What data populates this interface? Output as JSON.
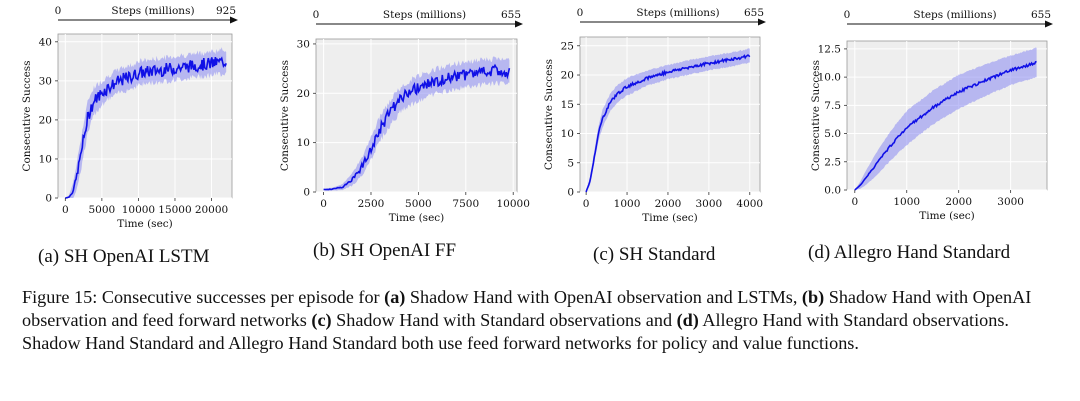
{
  "charts": [
    {
      "sub_caption": "(a) SH OpenAI LSTM",
      "top_axis": {
        "label": "Steps (millions)",
        "start": "0",
        "end": "925"
      },
      "chart_data": {
        "type": "line",
        "title": "",
        "xlabel": "Time (sec)",
        "ylabel": "Consecutive Success",
        "xlim": [
          -1000,
          22800
        ],
        "ylim": [
          0,
          42
        ],
        "xticks": [
          0,
          5000,
          10000,
          15000,
          20000
        ],
        "yticks": [
          0,
          10,
          20,
          30,
          40
        ],
        "grid": true,
        "series": [
          {
            "x": [
              0,
              500,
              1000,
              1500,
              2000,
              2500,
              3000,
              3500,
              4000,
              5000,
              6000,
              7000,
              8000,
              9000,
              10000,
              12000,
              14000,
              16000,
              18000,
              20000,
              22000
            ],
            "values": [
              0,
              0.2,
              1.5,
              5,
              10,
              15,
              20,
              23,
              25,
              27,
              28.5,
              29.5,
              30.5,
              31,
              32,
              32.5,
              33,
              33.5,
              34,
              34.5,
              35
            ],
            "band": [
              0,
              0.5,
              2,
              3,
              4,
              4,
              4,
              4,
              3.5,
              3,
              3,
              3,
              3,
              3,
              3,
              3,
              3,
              3,
              3,
              3,
              3
            ]
          }
        ]
      }
    },
    {
      "sub_caption": "(b) SH OpenAI FF",
      "top_axis": {
        "label": "Steps (millions)",
        "start": "0",
        "end": "655"
      },
      "chart_data": {
        "type": "line",
        "title": "",
        "xlabel": "Time (sec)",
        "ylabel": "Consecutive Success",
        "xlim": [
          -400,
          10200
        ],
        "ylim": [
          0,
          31
        ],
        "xticks": [
          0,
          2500,
          5000,
          7500,
          10000
        ],
        "yticks": [
          0,
          10,
          20,
          30
        ],
        "grid": true,
        "series": [
          {
            "x": [
              0,
              500,
              1000,
              1500,
              2000,
              2500,
              3000,
              3500,
              4000,
              4500,
              5000,
              6000,
              7000,
              8000,
              9000,
              9800
            ],
            "values": [
              0.5,
              0.6,
              1,
              2.5,
              5,
              9,
              13,
              16,
              18.5,
              20,
              21,
              22.5,
              23.5,
              24,
              24.5,
              24.5
            ],
            "band": [
              0.2,
              0.3,
              0.6,
              1.2,
              1.8,
              2.2,
              2.5,
              2.5,
              2.5,
              2.5,
              2.5,
              2.5,
              2.5,
              2.5,
              2.5,
              2.5
            ]
          }
        ]
      }
    },
    {
      "sub_caption": "(c) SH Standard",
      "top_axis": {
        "label": "Steps (millions)",
        "start": "0",
        "end": "655"
      },
      "chart_data": {
        "type": "line",
        "title": "",
        "xlabel": "Time (sec)",
        "ylabel": "Consecutive Success",
        "xlim": [
          -150,
          4250
        ],
        "ylim": [
          0,
          26.5
        ],
        "xticks": [
          0,
          1000,
          2000,
          3000,
          4000
        ],
        "yticks": [
          0,
          5,
          10,
          15,
          20,
          25
        ],
        "grid": true,
        "series": [
          {
            "x": [
              0,
              100,
              200,
              300,
              400,
              600,
              800,
              1000,
              1500,
              2000,
              2500,
              3000,
              3500,
              4000
            ],
            "values": [
              0,
              2,
              6,
              10,
              12.5,
              15.5,
              17,
              18,
              19.5,
              20.5,
              21.3,
              22,
              22.6,
              23.3
            ],
            "band": [
              0,
              0.8,
              1,
              1.3,
              1.5,
              1.5,
              1.5,
              1.5,
              1.3,
              1.2,
              1.2,
              1.2,
              1.2,
              1.2
            ]
          }
        ]
      }
    },
    {
      "sub_caption": "(d) Allegro Hand Standard",
      "top_axis": {
        "label": "Steps (millions)",
        "start": "0",
        "end": "655"
      },
      "chart_data": {
        "type": "line",
        "title": "",
        "xlabel": "Time (sec)",
        "ylabel": "Consecutive Success",
        "xlim": [
          -150,
          3700
        ],
        "ylim": [
          0,
          13.2
        ],
        "xticks": [
          0,
          1000,
          2000,
          3000
        ],
        "yticks": [
          0.0,
          2.5,
          5.0,
          7.5,
          10.0,
          12.5
        ],
        "grid": true,
        "series": [
          {
            "x": [
              0,
              100,
              200,
              400,
              600,
              800,
              1000,
              1500,
              2000,
              2500,
              3000,
              3500
            ],
            "values": [
              0,
              0.4,
              1,
              2.2,
              3.4,
              4.5,
              5.5,
              7.3,
              8.7,
              9.7,
              10.6,
              11.3
            ],
            "band": [
              0,
              0.3,
              0.6,
              1.0,
              1.2,
              1.4,
              1.5,
              1.5,
              1.5,
              1.4,
              1.3,
              1.3
            ]
          }
        ]
      }
    }
  ],
  "caption": {
    "lead": "Figure 15: Consecutive successes per episode for ",
    "a": "(a)",
    "a_text": " Shadow Hand with OpenAI observation and LSTMs, ",
    "b": "(b)",
    "b_text": " Shadow Hand with OpenAI observation and feed forward networks ",
    "c": "(c)",
    "c_text": " Shadow Hand with Standard observations and ",
    "d": "(d)",
    "d_text": " Allegro Hand with Standard observations. Shadow Hand Standard and Allegro Hand Standard both use feed forward networks for policy and value functions."
  }
}
